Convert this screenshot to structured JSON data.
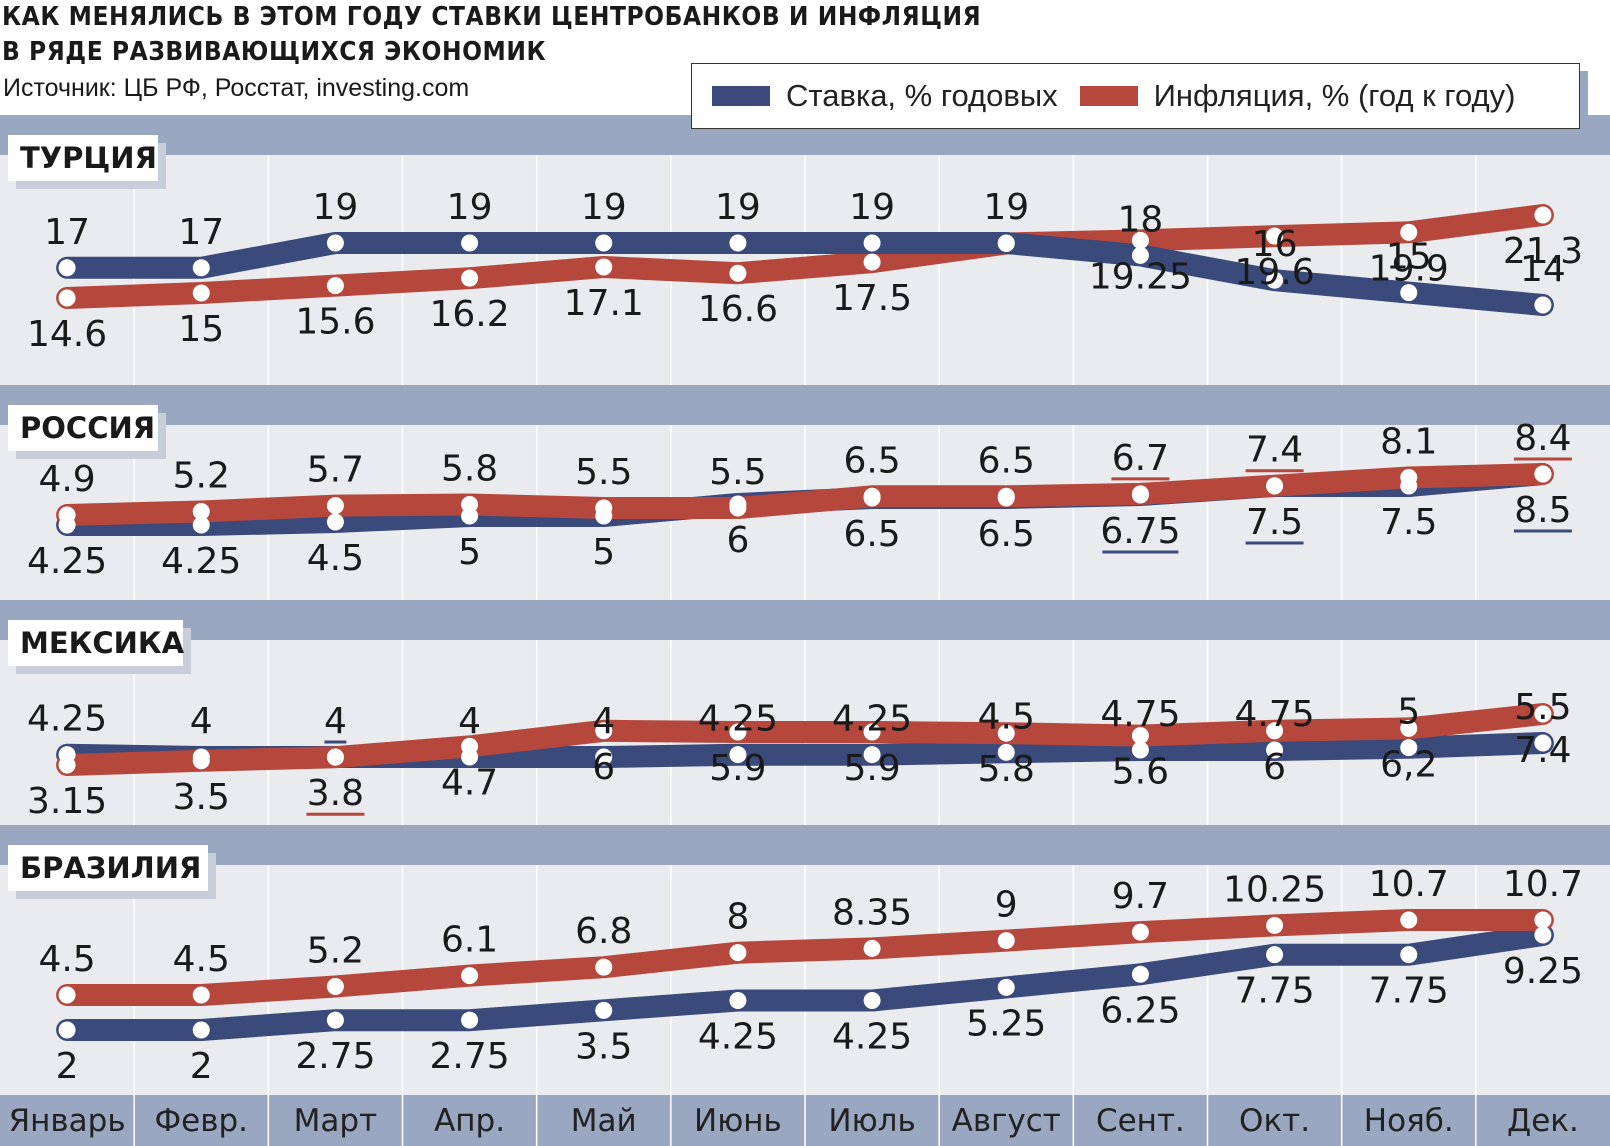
{
  "title": {
    "line1": "КАК МЕНЯЛИСЬ В ЭТОМ ГОДУ СТАВКИ ЦЕНТРОБАНКОВ И ИНФЛЯЦИЯ",
    "line2": "В РЯДЕ РАЗВИВАЮЩИХСЯ ЭКОНОМИК"
  },
  "source": "Источник: ЦБ РФ, Росстат, investing.com",
  "legend": {
    "rate_label": "Ставка, % годовых",
    "inflation_label": "Инфляция, % (год к году)"
  },
  "colors": {
    "rate": "#3a4a7a",
    "inflation": "#b5473c",
    "band": "#9aa7c0",
    "panel": "#e9ebef",
    "axis_band": "#9aa7c0"
  },
  "chart_data": {
    "type": "line",
    "categories": [
      "Январь",
      "Февр.",
      "Март",
      "Апр.",
      "Май",
      "Июнь",
      "Июль",
      "Август",
      "Сент.",
      "Окт.",
      "Нояб.",
      "Дек."
    ],
    "panels": [
      {
        "country": "ТУРЦИЯ",
        "series": [
          {
            "name": "Ставка, % годовых",
            "values": [
              17,
              17,
              19,
              19,
              19,
              19,
              19,
              19,
              18,
              16,
              15,
              14
            ],
            "labels": [
              "17",
              "17",
              "19",
              "19",
              "19",
              "19",
              "19",
              "19",
              "18",
              "16",
              "15",
              "14"
            ]
          },
          {
            "name": "Инфляция, % (год к году)",
            "values": [
              14.6,
              15,
              15.6,
              16.2,
              17.1,
              16.6,
              17.5,
              19,
              19.25,
              19.6,
              19.9,
              21.3
            ],
            "labels": [
              "14.6",
              "15",
              "15.6",
              "16.2",
              "17.1",
              "16.6",
              "17.5",
              "",
              "19.25",
              "19.6",
              "19.9",
              "21.3"
            ]
          }
        ]
      },
      {
        "country": "РОССИЯ",
        "series": [
          {
            "name": "Ставка, % годовых",
            "values": [
              4.25,
              4.25,
              4.5,
              5,
              5,
              6,
              6.5,
              6.5,
              6.75,
              7.5,
              7.5,
              8.5
            ],
            "labels": [
              "4.25",
              "4.25",
              "4.5",
              "5",
              "5",
              "6",
              "6.5",
              "6.5",
              "6.75",
              "7.5",
              "7.5",
              "8.5"
            ],
            "underlined": [
              8,
              9,
              11
            ]
          },
          {
            "name": "Инфляция, % (год к году)",
            "values": [
              4.9,
              5.2,
              5.7,
              5.8,
              5.5,
              5.5,
              6.5,
              6.5,
              6.7,
              7.4,
              8.1,
              8.4
            ],
            "labels": [
              "4.9",
              "5.2",
              "5.7",
              "5.8",
              "5.5",
              "5.5",
              "6.5",
              "6.5",
              "6.7",
              "7.4",
              "8.1",
              "8.4"
            ],
            "underlined": [
              8,
              9,
              11
            ]
          }
        ]
      },
      {
        "country": "МЕКСИКА",
        "series": [
          {
            "name": "Ставка, % годовых",
            "values": [
              4.25,
              4,
              4,
              4,
              4,
              4.25,
              4.25,
              4.5,
              4.75,
              4.75,
              5,
              5.5
            ],
            "labels": [
              "4.25",
              "4",
              "4",
              "4",
              "4",
              "4.25",
              "4.25",
              "4.5",
              "4.75",
              "4.75",
              "5",
              "5.5"
            ],
            "underlined": [
              2
            ]
          },
          {
            "name": "Инфляция, % (год к году)",
            "values": [
              3.15,
              3.5,
              3.8,
              4.7,
              6,
              5.9,
              5.9,
              5.8,
              5.6,
              6,
              6.2,
              7.4
            ],
            "labels": [
              "3.15",
              "3.5",
              "3.8",
              "4.7",
              "6",
              "5.9",
              "5.9",
              "5.8",
              "5.6",
              "6",
              "6,2",
              "7.4"
            ],
            "underlined": [
              2
            ]
          }
        ]
      },
      {
        "country": "БРАЗИЛИЯ",
        "series": [
          {
            "name": "Ставка, % годовых",
            "values": [
              2,
              2,
              2.75,
              2.75,
              3.5,
              4.25,
              4.25,
              5.25,
              6.25,
              7.75,
              7.75,
              9.25
            ],
            "labels": [
              "2",
              "2",
              "2.75",
              "2.75",
              "3.5",
              "4.25",
              "4.25",
              "5.25",
              "6.25",
              "7.75",
              "7.75",
              "9.25"
            ]
          },
          {
            "name": "Инфляция, % (год к году)",
            "values": [
              4.5,
              4.5,
              5.2,
              6.1,
              6.8,
              8,
              8.35,
              9,
              9.7,
              10.25,
              10.7,
              10.7
            ],
            "labels": [
              "4.5",
              "4.5",
              "5.2",
              "6.1",
              "6.8",
              "8",
              "8.35",
              "9",
              "9.7",
              "10.25",
              "10.7",
              "10.7"
            ]
          }
        ]
      }
    ]
  }
}
